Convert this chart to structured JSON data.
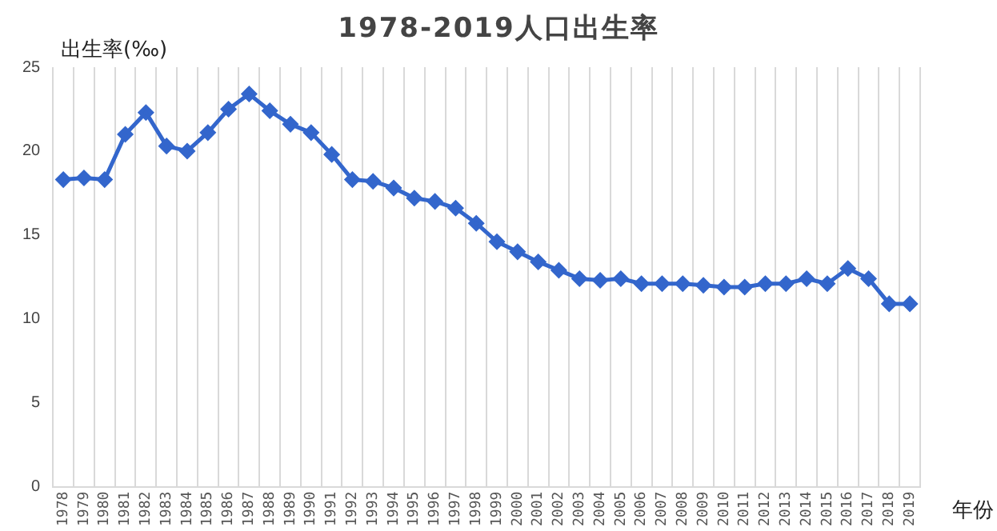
{
  "chart_data": {
    "type": "line",
    "title": "1978-2019人口出生率",
    "ylabel": "出生率(‰)",
    "xlabel": "年份",
    "categories": [
      "1978",
      "1979",
      "1980",
      "1981",
      "1982",
      "1983",
      "1984",
      "1985",
      "1986",
      "1987",
      "1988",
      "1989",
      "1990",
      "1991",
      "1992",
      "1993",
      "1994",
      "1995",
      "1996",
      "1997",
      "1998",
      "1999",
      "2000",
      "2001",
      "2002",
      "2003",
      "2004",
      "2005",
      "2006",
      "2007",
      "2008",
      "2009",
      "2010",
      "2011",
      "2012",
      "2013",
      "2014",
      "2015",
      "2016",
      "2017",
      "2018",
      "2019"
    ],
    "series": [
      {
        "color": "#3366cc",
        "values": [
          18.3,
          18.4,
          18.3,
          21.0,
          22.3,
          20.3,
          20.0,
          21.1,
          22.5,
          23.4,
          22.4,
          21.6,
          21.1,
          19.8,
          18.3,
          18.2,
          17.8,
          17.2,
          17.0,
          16.6,
          15.7,
          14.6,
          14.0,
          13.4,
          12.9,
          12.4,
          12.3,
          12.4,
          12.1,
          12.1,
          12.1,
          12.0,
          11.9,
          11.9,
          12.1,
          12.1,
          12.4,
          12.1,
          13.0,
          12.4,
          10.9,
          10.9
        ]
      }
    ],
    "ylim": [
      0,
      25
    ],
    "yticks": [
      0,
      5,
      10,
      15,
      20,
      25
    ],
    "grid": "x",
    "marker": "diamond",
    "legend": false
  }
}
